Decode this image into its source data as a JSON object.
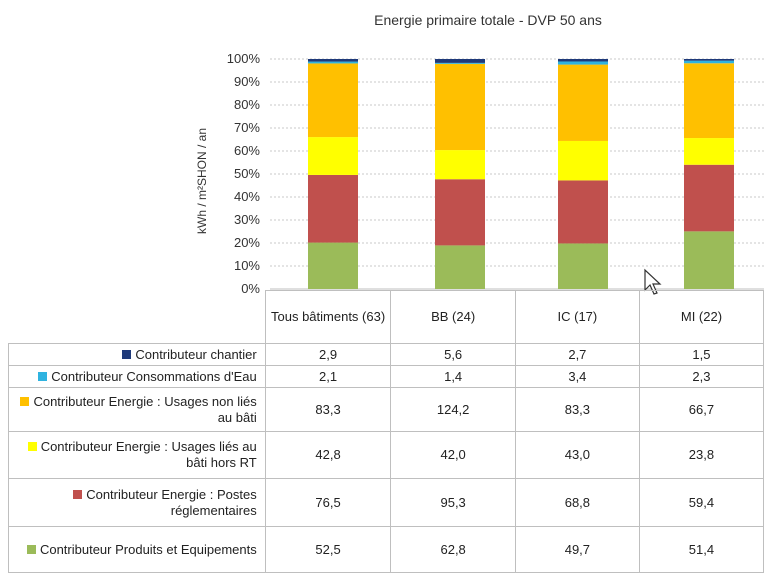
{
  "chart_data": {
    "type": "bar",
    "stacked": "percent",
    "title": "Energie primaire totale - DVP 50 ans",
    "ylabel": "kWh / m²SHON / an",
    "ylim": [
      0,
      100
    ],
    "yticks": [
      "0%",
      "10%",
      "20%",
      "30%",
      "40%",
      "50%",
      "60%",
      "70%",
      "80%",
      "90%",
      "100%"
    ],
    "grid": "horizontal dotted",
    "categories": [
      "Tous bâtiments (63)",
      "BB (24)",
      "IC (17)",
      "MI (22)"
    ],
    "series": [
      {
        "name": "Contributeur chantier",
        "color": "#1f3a7a",
        "values": [
          "2,9",
          "5,6",
          "2,7",
          "1,5"
        ]
      },
      {
        "name": "Contributeur Consommations d'Eau",
        "color": "#2fb3e0",
        "values": [
          "2,1",
          "1,4",
          "3,4",
          "2,3"
        ]
      },
      {
        "name": "Contributeur Energie : Usages non liés au bâti",
        "color": "#ffc000",
        "values": [
          "83,3",
          "124,2",
          "83,3",
          "66,7"
        ]
      },
      {
        "name": "Contributeur Energie : Usages liés au bâti hors RT",
        "color": "#ffff00",
        "values": [
          "42,8",
          "42,0",
          "43,0",
          "23,8"
        ]
      },
      {
        "name": "Contributeur Energie : Postes réglementaires",
        "color": "#c0504d",
        "values": [
          "76,5",
          "95,3",
          "68,8",
          "59,4"
        ]
      },
      {
        "name": "Contributeur Produits et Equipements",
        "color": "#9bbb59",
        "values": [
          "52,5",
          "62,8",
          "49,7",
          "51,4"
        ]
      }
    ]
  },
  "table": {
    "rows": [
      {
        "label": "Contributeur chantier"
      },
      {
        "label": "Contributeur Consommations d'Eau"
      },
      {
        "label": "Contributeur Energie : Usages non liés au bâti"
      },
      {
        "label": "Contributeur Energie : Usages liés au bâti hors RT"
      },
      {
        "label": "Contributeur Energie : Postes réglementaires"
      },
      {
        "label": "Contributeur Produits et Equipements"
      }
    ]
  }
}
